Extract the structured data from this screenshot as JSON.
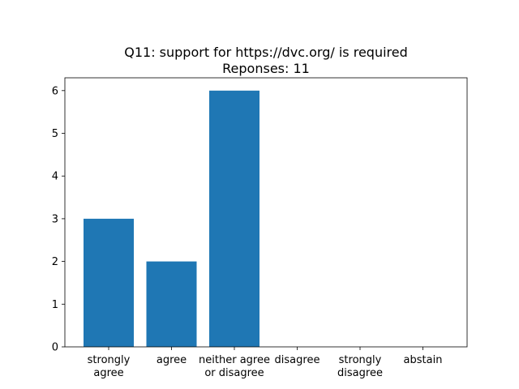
{
  "chart_data": {
    "type": "bar",
    "title": "Q11: support for https://dvc.org/ is required",
    "subtitle": "Reponses: 11",
    "categories": [
      [
        "strongly",
        "agree"
      ],
      [
        "agree"
      ],
      [
        "neither agree",
        "or disagree"
      ],
      [
        "disagree"
      ],
      [
        "strongly",
        "disagree"
      ],
      [
        "abstain"
      ]
    ],
    "values": [
      3,
      2,
      6,
      0,
      0,
      0
    ],
    "yticks": [
      0,
      1,
      2,
      3,
      4,
      5,
      6
    ],
    "ylim": [
      0,
      6.3
    ],
    "xlabel": "",
    "ylabel": "",
    "bar_color": "#1f77b4",
    "grid": false,
    "legend": "none"
  }
}
